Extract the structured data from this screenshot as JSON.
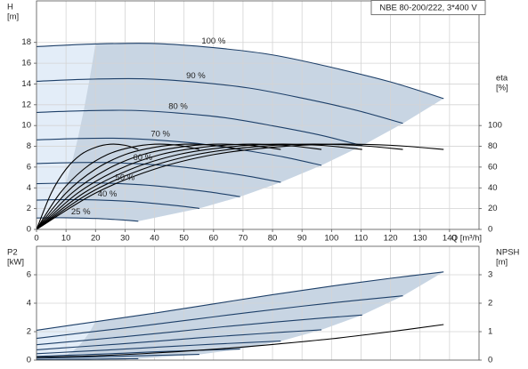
{
  "chart_data": [
    {
      "type": "line",
      "title": "NBE 80-200/222, 3*400 V",
      "ylabel": [
        "H",
        "[m]"
      ],
      "y2label": [
        "eta",
        "[%]"
      ],
      "xlabel": "Q [m³/h]",
      "xlim": [
        0,
        150
      ],
      "xticks": [
        0,
        10,
        20,
        30,
        40,
        50,
        60,
        70,
        80,
        90,
        100,
        110,
        120,
        130,
        140
      ],
      "ylim": [
        0,
        22
      ],
      "yticks": [
        0,
        2,
        4,
        6,
        8,
        10,
        12,
        14,
        16,
        18
      ],
      "y2lim": [
        0,
        220
      ],
      "y2ticks": [
        0,
        20,
        40,
        60,
        80,
        100
      ],
      "grid": true,
      "area_colors": [
        "#e3edf8",
        "#c8d5e3"
      ],
      "series": [
        {
          "name": "100 %",
          "color": "#1d3f68",
          "x": [
            0,
            20,
            40,
            60,
            80,
            100,
            120,
            138
          ],
          "values": [
            17.6,
            17.85,
            17.9,
            17.5,
            16.8,
            15.6,
            14.2,
            12.6
          ]
        },
        {
          "name": "90 %",
          "color": "#1d3f68",
          "x": [
            0,
            18,
            36,
            54,
            72,
            90,
            108,
            124.2
          ],
          "values": [
            14.26,
            14.46,
            14.5,
            14.18,
            13.61,
            12.64,
            11.5,
            10.21
          ]
        },
        {
          "name": "80 %",
          "color": "#1d3f68",
          "x": [
            0,
            16,
            32,
            48,
            64,
            80,
            96,
            110.4
          ],
          "values": [
            11.26,
            11.42,
            11.46,
            11.2,
            10.75,
            9.98,
            9.09,
            8.06
          ]
        },
        {
          "name": "70 %",
          "color": "#1d3f68",
          "x": [
            0,
            14,
            28,
            42,
            56,
            70,
            84,
            96.6
          ],
          "values": [
            8.62,
            8.75,
            8.77,
            8.58,
            8.23,
            7.64,
            6.96,
            6.17
          ]
        },
        {
          "name": "60 %",
          "color": "#1d3f68",
          "x": [
            0,
            12,
            24,
            36,
            48,
            60,
            72,
            82.8
          ],
          "values": [
            6.34,
            6.43,
            6.44,
            6.3,
            6.05,
            5.62,
            5.11,
            4.54
          ]
        },
        {
          "name": "50 %",
          "color": "#1d3f68",
          "x": [
            0,
            10,
            20,
            30,
            40,
            50,
            60,
            69
          ],
          "values": [
            4.4,
            4.46,
            4.48,
            4.38,
            4.2,
            3.9,
            3.55,
            3.15
          ]
        },
        {
          "name": "40 %",
          "color": "#1d3f68",
          "x": [
            0,
            8,
            16,
            24,
            32,
            40,
            48,
            55.2
          ],
          "values": [
            2.82,
            2.86,
            2.86,
            2.8,
            2.69,
            2.5,
            2.27,
            2.02
          ]
        },
        {
          "name": "25 %",
          "color": "#1d3f68",
          "x": [
            0,
            5,
            10,
            15,
            20,
            25,
            30,
            34.5
          ],
          "values": [
            1.1,
            1.12,
            1.12,
            1.09,
            1.05,
            0.98,
            0.89,
            0.79
          ]
        },
        {
          "color": "#000000",
          "axis": "y2",
          "x": [
            0,
            20,
            40,
            60,
            80,
            100,
            120,
            138
          ],
          "values": [
            0,
            35,
            58,
            72,
            79,
            82,
            81,
            77
          ]
        },
        {
          "color": "#000000",
          "axis": "y2",
          "x": [
            0,
            18,
            36,
            54,
            72,
            90,
            108,
            124.2
          ],
          "values": [
            0,
            35,
            58,
            72,
            79,
            82,
            81,
            77
          ]
        },
        {
          "color": "#000000",
          "axis": "y2",
          "x": [
            0,
            16,
            32,
            48,
            64,
            80,
            96,
            110.4
          ],
          "values": [
            0,
            35,
            58,
            72,
            79,
            82,
            81,
            77
          ]
        },
        {
          "color": "#000000",
          "axis": "y2",
          "x": [
            0,
            14,
            28,
            42,
            56,
            70,
            84,
            96.6
          ],
          "values": [
            0,
            35,
            58,
            72,
            79,
            82,
            81,
            77
          ]
        },
        {
          "color": "#000000",
          "axis": "y2",
          "x": [
            0,
            12,
            24,
            36,
            48,
            60,
            72,
            82.8
          ],
          "values": [
            0,
            35,
            58,
            72,
            79,
            82,
            81,
            77
          ]
        },
        {
          "color": "#000000",
          "axis": "y2",
          "x": [
            0,
            10,
            20,
            30,
            40,
            50,
            60,
            69
          ],
          "values": [
            0,
            35,
            58,
            72,
            79,
            82,
            81,
            77
          ]
        },
        {
          "color": "#000000",
          "axis": "y2",
          "x": [
            0,
            8,
            16,
            24,
            32,
            40,
            48,
            55.2
          ],
          "values": [
            0,
            35,
            58,
            72,
            79,
            82,
            81,
            77
          ]
        },
        {
          "color": "#000000",
          "axis": "y2",
          "x": [
            0,
            5,
            10,
            15,
            20,
            25,
            30,
            34.5
          ],
          "values": [
            0,
            35,
            58,
            72,
            79,
            82,
            81,
            77
          ]
        }
      ]
    },
    {
      "type": "line",
      "ylabel": [
        "P2",
        "[kW]"
      ],
      "y2label": [
        "NPSH",
        "[m]"
      ],
      "xlim": [
        0,
        150
      ],
      "xticks": [
        0,
        10,
        20,
        30,
        40,
        50,
        60,
        70,
        80,
        90,
        100,
        110,
        120,
        130,
        140
      ],
      "ylim": [
        0,
        8
      ],
      "yticks": [
        0,
        2,
        4,
        6
      ],
      "y2lim": [
        0,
        4
      ],
      "y2ticks": [
        0,
        1,
        2,
        3
      ],
      "grid": true,
      "area_colors": [
        "#e3edf8",
        "#c8d5e3"
      ],
      "series": [
        {
          "color": "#1d3f68",
          "x": [
            0,
            20,
            40,
            60,
            80,
            100,
            120,
            138
          ],
          "values": [
            2.1,
            2.7,
            3.3,
            3.95,
            4.6,
            5.2,
            5.75,
            6.2
          ]
        },
        {
          "color": "#1d3f68",
          "x": [
            0,
            18,
            36,
            54,
            72,
            90,
            108,
            124.2
          ],
          "values": [
            1.53,
            1.97,
            2.41,
            2.88,
            3.35,
            3.79,
            4.19,
            4.52
          ]
        },
        {
          "color": "#1d3f68",
          "x": [
            0,
            16,
            32,
            48,
            64,
            80,
            96,
            110.4
          ],
          "values": [
            1.08,
            1.38,
            1.69,
            2.02,
            2.36,
            2.66,
            2.94,
            3.17
          ]
        },
        {
          "color": "#1d3f68",
          "x": [
            0,
            14,
            28,
            42,
            56,
            70,
            84,
            96.6
          ],
          "values": [
            0.72,
            0.93,
            1.13,
            1.35,
            1.58,
            1.78,
            1.97,
            2.13
          ]
        },
        {
          "color": "#1d3f68",
          "x": [
            0,
            12,
            24,
            36,
            48,
            60,
            72,
            82.8
          ],
          "values": [
            0.45,
            0.58,
            0.71,
            0.85,
            0.99,
            1.12,
            1.24,
            1.34
          ]
        },
        {
          "color": "#1d3f68",
          "x": [
            0,
            10,
            20,
            30,
            40,
            50,
            60,
            69
          ],
          "values": [
            0.26,
            0.34,
            0.41,
            0.49,
            0.58,
            0.65,
            0.72,
            0.78
          ]
        },
        {
          "color": "#1d3f68",
          "x": [
            0,
            8,
            16,
            24,
            32,
            40,
            48,
            55.2
          ],
          "values": [
            0.13,
            0.17,
            0.21,
            0.25,
            0.29,
            0.33,
            0.37,
            0.4
          ]
        },
        {
          "color": "#1d3f68",
          "x": [
            0,
            5,
            10,
            15,
            20,
            25,
            30,
            34.5
          ],
          "values": [
            0.03,
            0.04,
            0.05,
            0.06,
            0.07,
            0.08,
            0.09,
            0.1
          ]
        },
        {
          "color": "#000000",
          "axis": "y2",
          "x": [
            0,
            20,
            40,
            60,
            80,
            100,
            120,
            138
          ],
          "values": [
            0.1,
            0.15,
            0.25,
            0.38,
            0.55,
            0.75,
            1.0,
            1.25
          ]
        }
      ]
    }
  ]
}
